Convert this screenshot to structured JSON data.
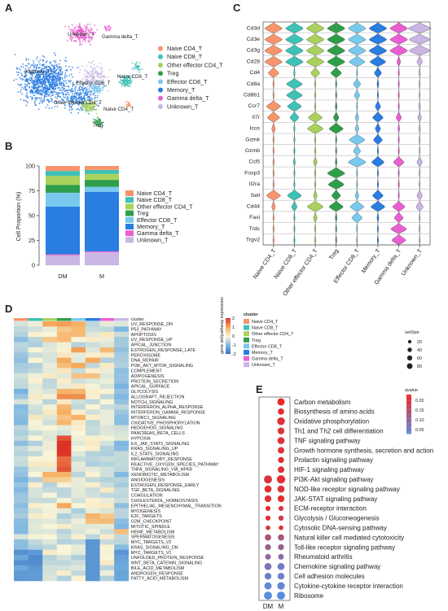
{
  "panels": {
    "A": "A",
    "B": "B",
    "C": "C",
    "D": "D",
    "E": "E"
  },
  "colors": {
    "Naive CD4_T": "#f7946b",
    "Naive CD8_T": "#3ec1b6",
    "Other effector CD4_T": "#a9d15c",
    "Treg": "#2f9e4a",
    "Effector CD8_T": "#79c9ee",
    "Memory_T": "#2a7de1",
    "Gamma delta_T": "#e95fd2",
    "Unknown_T": "#c9b6e4"
  },
  "panelA": {
    "legend": [
      "Naive CD4_T",
      "Naive CD8_T",
      "Other effector CD4_T",
      "Treg",
      "Effector CD8_T",
      "Memory_T",
      "Gamma delta_T",
      "Unknown_T"
    ],
    "labels": [
      "Unknown_T",
      "Gamma delta_T",
      "Memory_T",
      "Naive CD8_T",
      "Effector CD8_T",
      "Other effector CD4_T",
      "Naive CD4_T",
      "Treg"
    ]
  },
  "chart_data": {
    "type": "bar",
    "stacked": true,
    "title": "",
    "xlabel": "",
    "ylabel": "Cell Proportion (%)",
    "ylim": [
      0,
      100
    ],
    "yticks": [
      "0",
      "25",
      "50",
      "75",
      "100"
    ],
    "categories": [
      "DM",
      "M"
    ],
    "series": [
      {
        "name": "Unknown_T",
        "values": [
          10,
          13
        ]
      },
      {
        "name": "Gamma delta_T",
        "values": [
          1,
          1
        ]
      },
      {
        "name": "Memory_T",
        "values": [
          48,
          60
        ]
      },
      {
        "name": "Effector CD8_T",
        "values": [
          14,
          5
        ]
      },
      {
        "name": "Treg",
        "values": [
          8,
          7
        ]
      },
      {
        "name": "Other effector CD4_T",
        "values": [
          9,
          6
        ]
      },
      {
        "name": "Naive CD8_T",
        "values": [
          5,
          4
        ]
      },
      {
        "name": "Naive CD4_T",
        "values": [
          5,
          4
        ]
      }
    ],
    "legend": [
      "Naive CD4_T",
      "Naive CD8_T",
      "Other effector CD4_T",
      "Treg",
      "Effector CD8_T",
      "Memory_T",
      "Gamma delta_T",
      "Unknown_T"
    ]
  },
  "panelC": {
    "genes": [
      "Cd3d",
      "Cd3e",
      "Cd3g",
      "Cd28",
      "Cd4",
      "Cd8a",
      "Cd8b1",
      "Ccr7",
      "Il7r",
      "Icos",
      "Gzmk",
      "Gzmb",
      "Ccl5",
      "Foxp3",
      "Il2ra",
      "Sell",
      "Cd44",
      "Fasl",
      "Trdc",
      "Trgv2"
    ],
    "clusters": [
      "Naive CD4_T",
      "Naive CD8_T",
      "Other effector CD4_T",
      "Treg",
      "Effector CD8_T",
      "Memory_T",
      "Gamma delta_T",
      "Unknown_T"
    ]
  },
  "panelD": {
    "legend_title": "cluster",
    "scale_title": "gene set/pathway expression",
    "scale_ticks": [
      "2",
      "1",
      "0",
      "-1",
      "-2"
    ],
    "cluster_header": "cluster",
    "clusters": [
      "Naive CD4_T",
      "Naive CD8_T",
      "Other effector CD4_T",
      "Treg",
      "Effector CD8_T",
      "Memory_T",
      "Gamma delta_T",
      "Unknown_T"
    ],
    "pathways": [
      "UV_RESPONSE_DN",
      "P53_PATHWAY",
      "APOPTOSIS",
      "UV_RESPONSE_UP",
      "APICAL_JUNCTION",
      "ESTROGEN_RESPONSE_LATE",
      "PEROXISOME",
      "DNA_REPAIR",
      "PI3K_AKT_MTOR_SIGNALING",
      "COMPLEMENT",
      "ADIPOGENESIS",
      "PROTEIN_SECRETION",
      "APICAL_SURFACE",
      "GLYCOLYSIS",
      "ALLOGRAFT_REJECTION",
      "NOTCH_SIGNALING",
      "INTERFERON_ALPHA_RESPONSE",
      "INTERFERON_GAMMA_RESPONSE",
      "MTORC1_SIGNALING",
      "OXIDATIVE_PHOSPHORYLATION",
      "HEDGEHOG_SIGNALING",
      "PANCREAS_BETA_CELLS",
      "HYPOXIA",
      "IL6_JAK_STAT3_SIGNALING",
      "KRAS_SIGNALING_UP",
      "IL2_STAT5_SIGNALING",
      "INFLAMMATORY_RESPONSE",
      "REACTIVE_OXYGEN_SPECIES_PATHWAY",
      "TNFA_SIGNALING_VIA_NFKB",
      "XENOBIOTIC_METABOLISM",
      "ANGIOGENESIS",
      "ESTROGEN_RESPONSE_EARLY",
      "TGF_BETA_SIGNALING",
      "COAGULATION",
      "CHOLESTEROL_HOMEOSTASIS",
      "EPITHELIAL_MESENCHYMAL_TRANSITION",
      "MYOGENESIS",
      "E2F_TARGETS",
      "G2M_CHECKPOINT",
      "MITOTIC_SPINDLE",
      "HEME_METABOLISM",
      "SPERMATOGENESIS",
      "MYC_TARGETS_V2",
      "KRAS_SIGNALING_DN",
      "MYC_TARGETS_V1",
      "UNFOLDED_PROTEIN_RESPONSE",
      "WNT_BETA_CATENIN_SIGNALING",
      "BILE_ACID_METABOLISM",
      "ANDROGEN_RESPONSE",
      "FATTY_ACID_METABOLISM"
    ]
  },
  "panelE": {
    "size_title": "setSize",
    "size_ticks": [
      "20",
      "40",
      "60",
      "80"
    ],
    "q_title": "qvalue",
    "q_ticks": [
      "0.20",
      "0.15",
      "0.10",
      "0.05"
    ],
    "columns": [
      "DM",
      "M"
    ],
    "terms": [
      {
        "name": "Carbon metabolism",
        "dm": null,
        "m": [
          60,
          0.23
        ]
      },
      {
        "name": "Biosynthesis of amino acids",
        "dm": null,
        "m": [
          40,
          0.22
        ]
      },
      {
        "name": "Oxidative phosphorylation",
        "dm": null,
        "m": [
          70,
          0.21
        ]
      },
      {
        "name": "Th1 and Th2 cell differentiation",
        "dm": null,
        "m": [
          50,
          0.21
        ]
      },
      {
        "name": "TNF signaling pathway",
        "dm": null,
        "m": [
          55,
          0.21
        ]
      },
      {
        "name": "Growth hormone synthesis, secretion and action",
        "dm": null,
        "m": [
          45,
          0.21
        ]
      },
      {
        "name": "Prolactin signaling pathway",
        "dm": null,
        "m": [
          35,
          0.22
        ]
      },
      {
        "name": "HIF-1 signaling pathway",
        "dm": null,
        "m": [
          45,
          0.21
        ]
      },
      {
        "name": "PI3K-Akt signaling pathway",
        "dm": [
          80,
          0.21
        ],
        "m": [
          85,
          0.22
        ]
      },
      {
        "name": "NOD-like receptor signaling pathway",
        "dm": [
          55,
          0.22
        ],
        "m": [
          55,
          0.21
        ]
      },
      {
        "name": "JAK-STAT signaling pathway",
        "dm": [
          50,
          0.21
        ],
        "m": [
          50,
          0.22
        ]
      },
      {
        "name": "ECM-receptor interaction",
        "dm": [
          20,
          0.22
        ],
        "m": [
          20,
          0.21
        ]
      },
      {
        "name": "Glycolysis / Gluconeogenesis",
        "dm": [
          20,
          0.22
        ],
        "m": [
          22,
          0.2
        ]
      },
      {
        "name": "Cytosolic DNA-sensing pathway",
        "dm": [
          15,
          0.21
        ],
        "m": [
          15,
          0.22
        ]
      },
      {
        "name": "Natural killer cell mediated cytotoxicity",
        "dm": [
          40,
          0.15
        ],
        "m": [
          40,
          0.14
        ]
      },
      {
        "name": "Toll-like receptor signaling pathway",
        "dm": [
          35,
          0.12
        ],
        "m": [
          35,
          0.12
        ]
      },
      {
        "name": "Rheumatoid arthritis",
        "dm": [
          30,
          0.11
        ],
        "m": [
          30,
          0.1
        ]
      },
      {
        "name": "Chemokine signaling pathway",
        "dm": [
          55,
          0.08
        ],
        "m": [
          55,
          0.07
        ]
      },
      {
        "name": "Cell adhesion molecules",
        "dm": [
          50,
          0.06
        ],
        "m": [
          50,
          0.06
        ]
      },
      {
        "name": "Cytokine-cytokine receptor interaction",
        "dm": [
          60,
          0.05
        ],
        "m": [
          65,
          0.05
        ]
      },
      {
        "name": "Ribosome",
        "dm": [
          80,
          0.04
        ],
        "m": [
          80,
          0.04
        ]
      }
    ]
  }
}
